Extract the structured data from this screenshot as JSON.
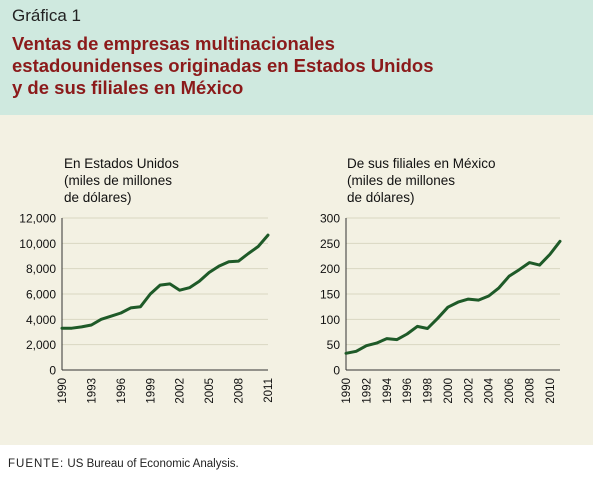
{
  "figure": {
    "label": "Gráfica 1",
    "title_lines": [
      "Ventas de empresas multinacionales",
      "estadounidenses originadas en Estados Unidos",
      "y de sus filiales en México"
    ],
    "source_label": "FUENTE:",
    "source_text": " US Bureau of Economic Analysis."
  },
  "colors": {
    "header_bg": "#cfe9df",
    "panel_bg": "#f3f1e3",
    "title": "#8b1a1a",
    "line": "#1e5a28",
    "grid": "#d9d6c2"
  },
  "chart_data": [
    {
      "type": "line",
      "title_lines": [
        "En Estados Unidos",
        "(miles de millones",
        "de dólares)"
      ],
      "xlabel": "",
      "ylabel": "",
      "ylim": [
        0,
        12000
      ],
      "yticks": [
        0,
        2000,
        4000,
        6000,
        8000,
        10000,
        12000
      ],
      "ytick_labels": [
        "0",
        "2,000",
        "4,000",
        "6,000",
        "8,000",
        "10,000",
        "12,000"
      ],
      "xlim": [
        1990,
        2011
      ],
      "xticks": [
        1990,
        1993,
        1996,
        1999,
        2002,
        2005,
        2008,
        2011
      ],
      "xtick_labels": [
        "1990",
        "1993",
        "1996",
        "1999",
        "2002",
        "2005",
        "2008",
        "2011"
      ],
      "grid": true,
      "series": [
        {
          "x": [
            1990,
            1991,
            1992,
            1993,
            1994,
            1995,
            1996,
            1997,
            1998,
            1999,
            2000,
            2001,
            2002,
            2003,
            2004,
            2005,
            2006,
            2007,
            2008,
            2009,
            2010,
            2011
          ],
          "values": [
            3300,
            3300,
            3400,
            3550,
            4000,
            4250,
            4500,
            4900,
            5000,
            6000,
            6700,
            6800,
            6300,
            6500,
            7000,
            7700,
            8200,
            8550,
            8600,
            9200,
            9750,
            10650
          ]
        }
      ]
    },
    {
      "type": "line",
      "title_lines": [
        "De sus filiales en México",
        "(miles de millones",
        "de dólares)"
      ],
      "xlabel": "",
      "ylabel": "",
      "ylim": [
        0,
        300
      ],
      "yticks": [
        0,
        50,
        100,
        150,
        200,
        250,
        300
      ],
      "ytick_labels": [
        "0",
        "50",
        "100",
        "150",
        "200",
        "250",
        "300"
      ],
      "xlim": [
        1990,
        2011
      ],
      "xticks": [
        1990,
        1992,
        1994,
        1996,
        1998,
        2000,
        2002,
        2004,
        2006,
        2008,
        2010
      ],
      "xtick_labels": [
        "1990",
        "1992",
        "1994",
        "1996",
        "1998",
        "2000",
        "2002",
        "2004",
        "2006",
        "2008",
        "2010"
      ],
      "grid": true,
      "series": [
        {
          "x": [
            1990,
            1991,
            1992,
            1993,
            1994,
            1995,
            1996,
            1997,
            1998,
            1999,
            2000,
            2001,
            2002,
            2003,
            2004,
            2005,
            2006,
            2007,
            2008,
            2009,
            2010,
            2011
          ],
          "values": [
            33,
            37,
            48,
            53,
            62,
            60,
            71,
            86,
            82,
            102,
            124,
            134,
            140,
            138,
            146,
            162,
            185,
            198,
            212,
            207,
            228,
            254
          ]
        }
      ]
    }
  ]
}
